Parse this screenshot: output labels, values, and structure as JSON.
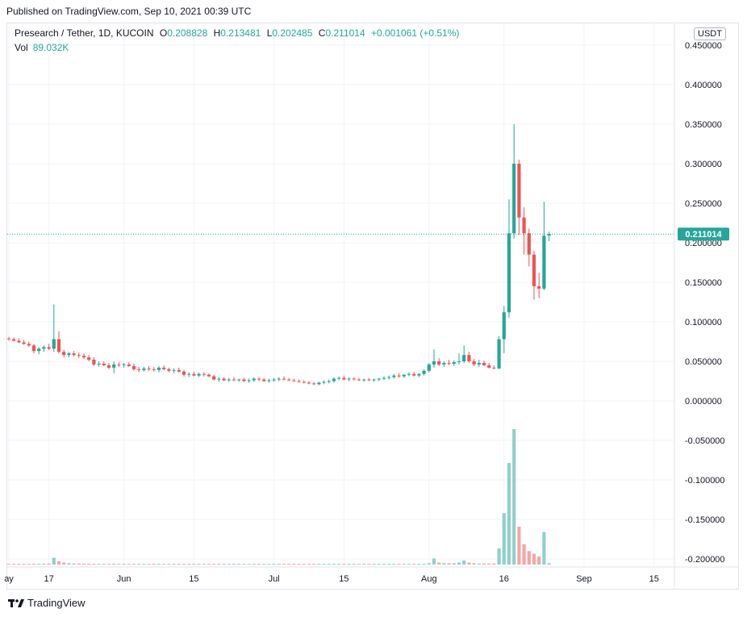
{
  "header": {
    "published": "Published on TradingView.com, Sep 10, 2021 00:39 UTC"
  },
  "legend": {
    "symbol": "Presearch / Tether, 1D, KUCOIN",
    "o_label": "O",
    "o_value": "0.208828",
    "h_label": "H",
    "h_value": "0.213481",
    "l_label": "L",
    "l_value": "0.202485",
    "c_label": "C",
    "c_value": "0.211014",
    "change": "+0.001061 (+0.51%)",
    "vol_label": "Vol",
    "vol_value": "89.032K"
  },
  "currency_badge": "USDT",
  "footer": {
    "logo_text": "TradingView"
  },
  "colors": {
    "up": "#26a69a",
    "down": "#ef5350",
    "vol_up": "#8fd1c9",
    "vol_down": "#f5a6a5",
    "grid": "#f0f3fa",
    "last_price": "#26a69a"
  },
  "chart_data": {
    "type": "candlestick",
    "ylim": [
      -0.21,
      0.46
    ],
    "y_ticks": [
      "0.450000",
      "0.400000",
      "0.350000",
      "0.300000",
      "0.250000",
      "0.200000",
      "0.150000",
      "0.100000",
      "0.050000",
      "0.000000",
      "-0.050000",
      "-0.100000",
      "-0.150000",
      "-0.200000"
    ],
    "x_ticks": [
      {
        "label": "ay",
        "day": 0
      },
      {
        "label": "17",
        "day": 8
      },
      {
        "label": "Jun",
        "day": 23
      },
      {
        "label": "15",
        "day": 37
      },
      {
        "label": "Jul",
        "day": 53
      },
      {
        "label": "15",
        "day": 67
      },
      {
        "label": "Aug",
        "day": 84
      },
      {
        "label": "16",
        "day": 99
      },
      {
        "label": "Sep",
        "day": 115
      },
      {
        "label": "15",
        "day": 129
      }
    ],
    "last_price": 0.211014,
    "last_price_label": "0.211014",
    "ohlc": [
      [
        0.079,
        0.081,
        0.076,
        0.078
      ],
      [
        0.078,
        0.08,
        0.075,
        0.076
      ],
      [
        0.076,
        0.079,
        0.073,
        0.074
      ],
      [
        0.074,
        0.077,
        0.071,
        0.072
      ],
      [
        0.072,
        0.075,
        0.068,
        0.07
      ],
      [
        0.07,
        0.072,
        0.06,
        0.063
      ],
      [
        0.063,
        0.068,
        0.059,
        0.066
      ],
      [
        0.066,
        0.07,
        0.062,
        0.068
      ],
      [
        0.068,
        0.072,
        0.064,
        0.066
      ],
      [
        0.066,
        0.122,
        0.062,
        0.078
      ],
      [
        0.078,
        0.088,
        0.06,
        0.062
      ],
      [
        0.062,
        0.065,
        0.055,
        0.058
      ],
      [
        0.058,
        0.062,
        0.055,
        0.06
      ],
      [
        0.06,
        0.063,
        0.056,
        0.058
      ],
      [
        0.058,
        0.061,
        0.054,
        0.057
      ],
      [
        0.057,
        0.06,
        0.053,
        0.055
      ],
      [
        0.055,
        0.058,
        0.05,
        0.052
      ],
      [
        0.052,
        0.055,
        0.044,
        0.046
      ],
      [
        0.046,
        0.05,
        0.043,
        0.047
      ],
      [
        0.047,
        0.05,
        0.044,
        0.045
      ],
      [
        0.045,
        0.048,
        0.04,
        0.042
      ],
      [
        0.042,
        0.05,
        0.035,
        0.046
      ],
      [
        0.046,
        0.049,
        0.043,
        0.045
      ],
      [
        0.045,
        0.048,
        0.042,
        0.046
      ],
      [
        0.046,
        0.049,
        0.043,
        0.044
      ],
      [
        0.044,
        0.047,
        0.038,
        0.04
      ],
      [
        0.04,
        0.043,
        0.036,
        0.039
      ],
      [
        0.039,
        0.043,
        0.037,
        0.041
      ],
      [
        0.041,
        0.044,
        0.038,
        0.04
      ],
      [
        0.04,
        0.043,
        0.037,
        0.039
      ],
      [
        0.039,
        0.044,
        0.036,
        0.042
      ],
      [
        0.042,
        0.045,
        0.039,
        0.04
      ],
      [
        0.04,
        0.042,
        0.036,
        0.038
      ],
      [
        0.038,
        0.041,
        0.035,
        0.039
      ],
      [
        0.039,
        0.042,
        0.036,
        0.037
      ],
      [
        0.037,
        0.039,
        0.031,
        0.033
      ],
      [
        0.033,
        0.036,
        0.03,
        0.034
      ],
      [
        0.034,
        0.037,
        0.031,
        0.032
      ],
      [
        0.032,
        0.036,
        0.03,
        0.034
      ],
      [
        0.034,
        0.036,
        0.031,
        0.033
      ],
      [
        0.033,
        0.035,
        0.03,
        0.031
      ],
      [
        0.031,
        0.033,
        0.026,
        0.027
      ],
      [
        0.027,
        0.03,
        0.024,
        0.028
      ],
      [
        0.028,
        0.03,
        0.025,
        0.026
      ],
      [
        0.026,
        0.029,
        0.024,
        0.027
      ],
      [
        0.027,
        0.03,
        0.025,
        0.026
      ],
      [
        0.026,
        0.028,
        0.024,
        0.027
      ],
      [
        0.027,
        0.029,
        0.024,
        0.025
      ],
      [
        0.025,
        0.028,
        0.023,
        0.026
      ],
      [
        0.026,
        0.03,
        0.024,
        0.028
      ],
      [
        0.028,
        0.03,
        0.025,
        0.027
      ],
      [
        0.027,
        0.029,
        0.024,
        0.025
      ],
      [
        0.025,
        0.028,
        0.023,
        0.026
      ],
      [
        0.026,
        0.029,
        0.024,
        0.027
      ],
      [
        0.027,
        0.03,
        0.025,
        0.028
      ],
      [
        0.028,
        0.031,
        0.026,
        0.027
      ],
      [
        0.027,
        0.029,
        0.025,
        0.026
      ],
      [
        0.026,
        0.028,
        0.024,
        0.025
      ],
      [
        0.025,
        0.027,
        0.023,
        0.024
      ],
      [
        0.024,
        0.026,
        0.022,
        0.023
      ],
      [
        0.023,
        0.025,
        0.021,
        0.022
      ],
      [
        0.022,
        0.024,
        0.02,
        0.021
      ],
      [
        0.021,
        0.024,
        0.02,
        0.023
      ],
      [
        0.023,
        0.026,
        0.021,
        0.024
      ],
      [
        0.024,
        0.027,
        0.022,
        0.025
      ],
      [
        0.025,
        0.03,
        0.023,
        0.028
      ],
      [
        0.028,
        0.031,
        0.026,
        0.029
      ],
      [
        0.029,
        0.032,
        0.026,
        0.027
      ],
      [
        0.027,
        0.03,
        0.025,
        0.028
      ],
      [
        0.028,
        0.03,
        0.026,
        0.027
      ],
      [
        0.027,
        0.029,
        0.025,
        0.026
      ],
      [
        0.026,
        0.028,
        0.024,
        0.027
      ],
      [
        0.027,
        0.029,
        0.025,
        0.026
      ],
      [
        0.026,
        0.028,
        0.024,
        0.027
      ],
      [
        0.027,
        0.029,
        0.025,
        0.028
      ],
      [
        0.028,
        0.031,
        0.026,
        0.029
      ],
      [
        0.029,
        0.032,
        0.027,
        0.03
      ],
      [
        0.03,
        0.034,
        0.028,
        0.032
      ],
      [
        0.032,
        0.035,
        0.029,
        0.031
      ],
      [
        0.031,
        0.034,
        0.029,
        0.033
      ],
      [
        0.033,
        0.036,
        0.031,
        0.034
      ],
      [
        0.034,
        0.037,
        0.031,
        0.032
      ],
      [
        0.032,
        0.035,
        0.03,
        0.034
      ],
      [
        0.034,
        0.04,
        0.032,
        0.038
      ],
      [
        0.038,
        0.048,
        0.036,
        0.046
      ],
      [
        0.046,
        0.065,
        0.042,
        0.05
      ],
      [
        0.05,
        0.054,
        0.044,
        0.046
      ],
      [
        0.046,
        0.05,
        0.043,
        0.048
      ],
      [
        0.048,
        0.052,
        0.045,
        0.047
      ],
      [
        0.047,
        0.051,
        0.044,
        0.049
      ],
      [
        0.049,
        0.06,
        0.046,
        0.05
      ],
      [
        0.05,
        0.07,
        0.048,
        0.058
      ],
      [
        0.058,
        0.062,
        0.048,
        0.05
      ],
      [
        0.05,
        0.053,
        0.044,
        0.046
      ],
      [
        0.046,
        0.052,
        0.043,
        0.048
      ],
      [
        0.048,
        0.051,
        0.044,
        0.045
      ],
      [
        0.045,
        0.048,
        0.041,
        0.042
      ],
      [
        0.042,
        0.045,
        0.04,
        0.041
      ],
      [
        0.041,
        0.082,
        0.04,
        0.078
      ],
      [
        0.078,
        0.12,
        0.06,
        0.112
      ],
      [
        0.112,
        0.255,
        0.105,
        0.212
      ],
      [
        0.212,
        0.35,
        0.205,
        0.3
      ],
      [
        0.3,
        0.305,
        0.21,
        0.232
      ],
      [
        0.232,
        0.245,
        0.185,
        0.212
      ],
      [
        0.212,
        0.218,
        0.17,
        0.185
      ],
      [
        0.185,
        0.19,
        0.128,
        0.145
      ],
      [
        0.145,
        0.162,
        0.13,
        0.142
      ],
      [
        0.142,
        0.252,
        0.14,
        0.209
      ],
      [
        0.209,
        0.214,
        0.202,
        0.211
      ]
    ],
    "volume": [
      0.5,
      0.5,
      0.5,
      0.5,
      0.5,
      0.6,
      0.6,
      0.7,
      0.8,
      5.0,
      2.5,
      1.5,
      1.0,
      0.8,
      0.8,
      0.7,
      0.7,
      0.6,
      0.6,
      0.6,
      0.6,
      0.7,
      0.6,
      0.5,
      0.5,
      0.5,
      0.5,
      0.5,
      0.5,
      0.5,
      0.5,
      0.5,
      0.5,
      0.5,
      0.5,
      0.5,
      0.5,
      0.5,
      0.5,
      0.5,
      0.5,
      0.5,
      0.5,
      0.5,
      0.5,
      0.5,
      0.5,
      0.5,
      0.5,
      0.5,
      0.5,
      0.5,
      0.5,
      0.5,
      0.5,
      0.5,
      0.5,
      0.5,
      0.5,
      0.5,
      0.5,
      0.5,
      0.5,
      0.5,
      0.5,
      0.6,
      0.6,
      0.5,
      0.5,
      0.5,
      0.5,
      0.5,
      0.5,
      0.5,
      0.5,
      0.5,
      0.5,
      0.5,
      0.5,
      0.5,
      0.5,
      0.5,
      0.5,
      0.6,
      1.0,
      4.5,
      1.5,
      1.0,
      1.0,
      1.0,
      1.5,
      3.0,
      1.5,
      1.0,
      0.8,
      0.8,
      0.8,
      0.8,
      12.0,
      38.0,
      75.0,
      100.0,
      28.0,
      15.0,
      10.0,
      8.0,
      6.0,
      24.0,
      1.0
    ]
  }
}
